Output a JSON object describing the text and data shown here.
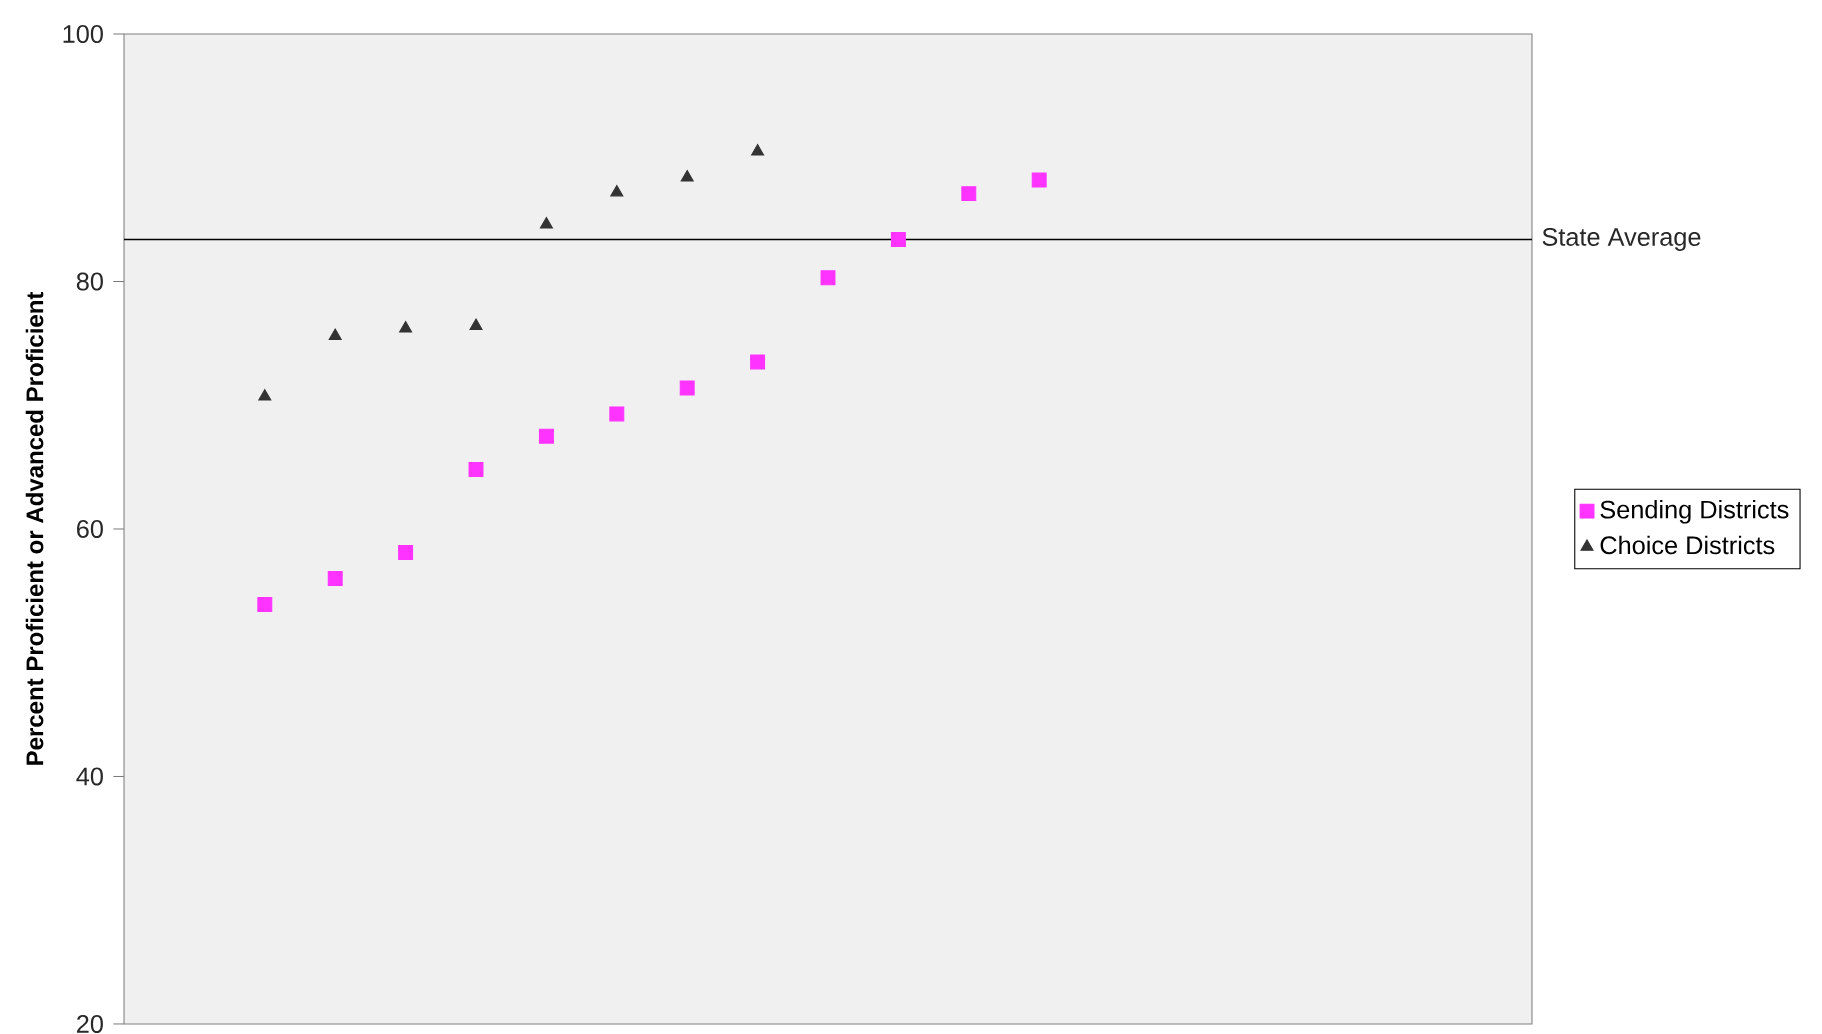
{
  "chart_data": {
    "type": "scatter",
    "ylabel": "Percent Proficient or Advanced Proficient",
    "categories": [
      null,
      null,
      null,
      null,
      null,
      null,
      null,
      null,
      null,
      null,
      null,
      null,
      null,
      null,
      null,
      null,
      null,
      null,
      null,
      null,
      null
    ],
    "series": [
      {
        "name": "Sending Districts",
        "color": "#ff33ff",
        "marker": "square",
        "values": [
          null,
          null,
          53.9,
          56.0,
          58.1,
          64.8,
          67.5,
          69.3,
          71.4,
          73.5,
          80.3,
          83.4,
          87.1,
          88.2,
          null,
          null,
          null,
          null,
          null,
          null,
          null
        ]
      },
      {
        "name": "Choice Districts",
        "color": "#333333",
        "marker": "triangle",
        "values": [
          null,
          null,
          70.7,
          75.6,
          76.2,
          76.4,
          84.6,
          87.2,
          88.4,
          90.5,
          null,
          null,
          null,
          null,
          null,
          null,
          null,
          null,
          null,
          null,
          null
        ]
      }
    ],
    "ylim": [
      20,
      100
    ],
    "yticks": [
      20,
      40,
      60,
      80,
      100
    ],
    "tick_labels": "y",
    "grid": false,
    "legend": "right",
    "ref_lines": [
      {
        "axis": "y",
        "value": 83.4,
        "label": "State Average",
        "color": "#000000"
      }
    ]
  }
}
